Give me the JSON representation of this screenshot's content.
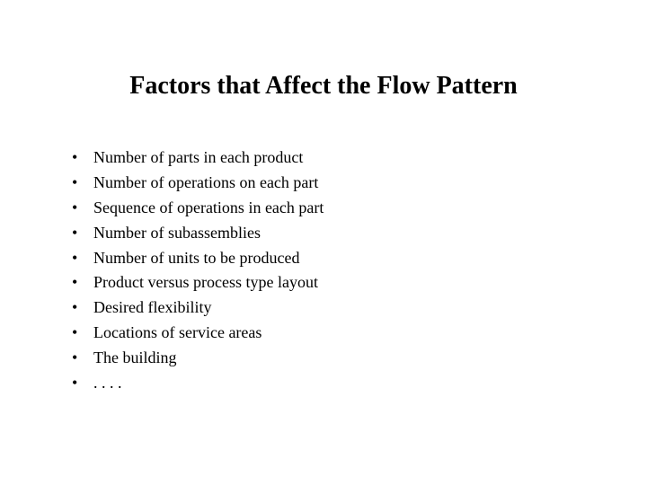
{
  "slide": {
    "title": "Factors that Affect the Flow Pattern",
    "title_fontsize": 28,
    "title_fontweight": "bold",
    "body_fontsize": 18,
    "font_family": "Times New Roman",
    "background_color": "#ffffff",
    "text_color": "#000000",
    "bullet_marker": "•",
    "bullets": [
      "Number of parts in each product",
      "Number of operations on each part",
      "Sequence of operations in each part",
      "Number of subassemblies",
      "Number of units to be produced",
      "Product versus process type layout",
      "Desired flexibility",
      "Locations of service areas",
      "The building",
      ". . . ."
    ]
  }
}
